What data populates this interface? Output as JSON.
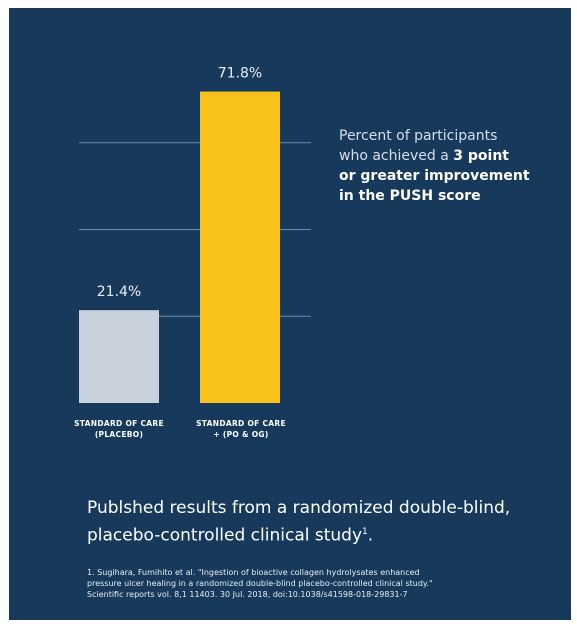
{
  "colors": {
    "background": "#173a5c",
    "placebo_bar": "#c9d2dc",
    "treatment_bar": "#f9c21b",
    "grid": "#6f89a6"
  },
  "chart_data": {
    "type": "bar",
    "categories": [
      [
        "STANDARD OF CARE",
        "(PLACEBO)"
      ],
      [
        "STANDARD OF CARE",
        "+ (PO & OG)"
      ]
    ],
    "values": [
      21.4,
      71.8
    ],
    "value_labels": [
      "21.4%",
      "71.8%"
    ],
    "ylim": [
      0,
      80
    ],
    "grid": true,
    "legend": "none"
  },
  "annotation": {
    "line1": "Percent of participants",
    "line2_normal": "who achieved a ",
    "line2_bold": "3 point",
    "line3": "or greater improvement",
    "line4": "in the PUSH score"
  },
  "footer": {
    "text": "Publshed results from a randomized double-blind, placebo-controlled clinical study",
    "superscript": "1",
    "period": "."
  },
  "reference": {
    "line1": "1. Sugihara, Fumihito et al. \"Ingestion of bioactive collagen hydrolysates enhanced",
    "line2": "pressure ulcer healing in a randomized double-blind placebo-controlled clinical study.\"",
    "line3": "Scientific reports vol. 8,1 11403. 30 Jul. 2018, doi:10.1038/s41598-018-29831-7"
  }
}
